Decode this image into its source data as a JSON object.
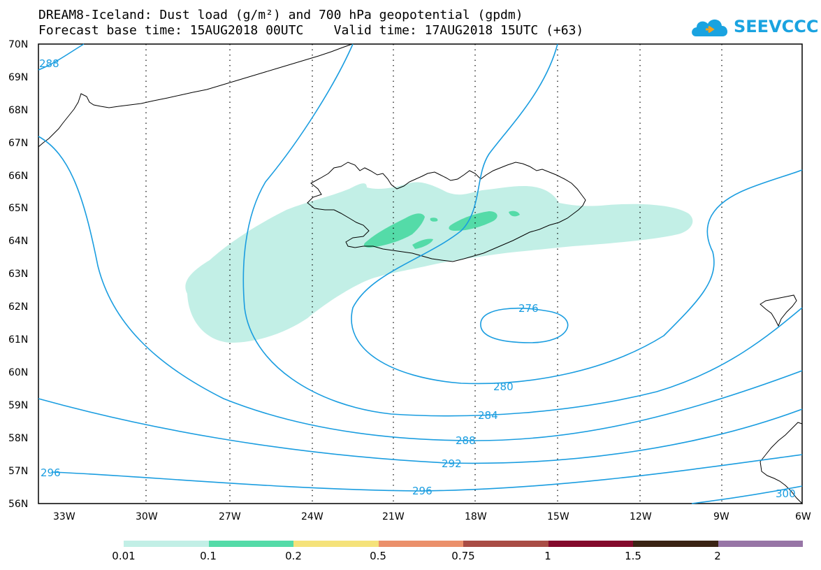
{
  "title_line1": "DREAM8-Iceland: Dust load (g/m²) and 700 hPa geopotential (gpdm)",
  "title_line2": "Forecast base time: 15AUG2018 00UTC    Valid time: 17AUG2018 15UTC (+63)",
  "logo_text": "SEEVCCC",
  "map": {
    "lat_labels": [
      "70N",
      "69N",
      "68N",
      "67N",
      "66N",
      "65N",
      "64N",
      "63N",
      "62N",
      "61N",
      "60N",
      "59N",
      "58N",
      "57N",
      "56N"
    ],
    "lon_labels": [
      "33W",
      "30W",
      "27W",
      "24W",
      "21W",
      "18W",
      "15W",
      "12W",
      "9W",
      "6W"
    ],
    "contour_labels": [
      "288",
      "276",
      "280",
      "284",
      "288",
      "292",
      "296",
      "296",
      "300"
    ],
    "contour_color": "#1a9de0",
    "coast_color": "#000000"
  },
  "colorbar": {
    "colors": [
      "#c2efe6",
      "#54dba8",
      "#f5e27a",
      "#eb906b",
      "#a94d45",
      "#840a2c",
      "#3b2414",
      "#9775a6"
    ],
    "labels": [
      "0.01",
      "0.1",
      "0.2",
      "0.5",
      "0.75",
      "1",
      "1.5",
      "2"
    ]
  }
}
